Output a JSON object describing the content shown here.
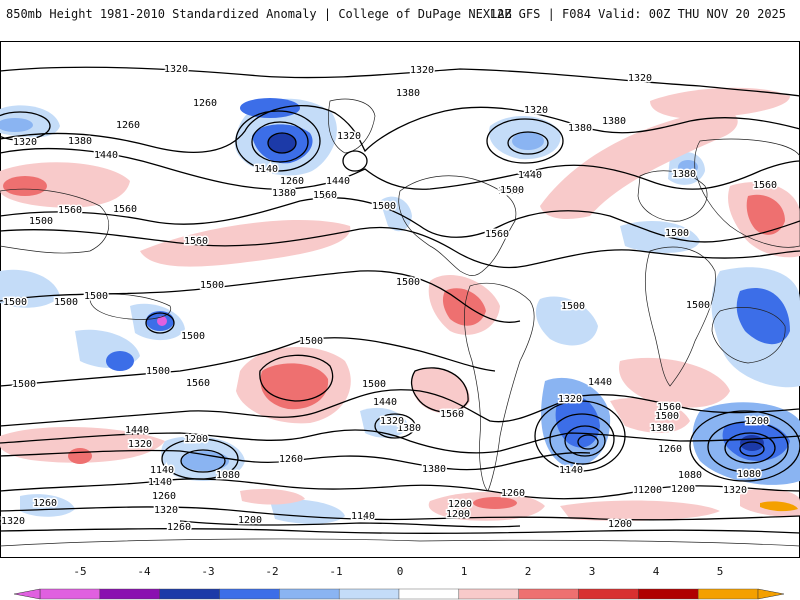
{
  "header": {
    "title": "850mb Height 1981-2010 Standardized Anomaly | College of DuPage NEXLAB",
    "run_info": "12Z GFS | F084 Valid: 00Z THU NOV 20 2025"
  },
  "colorbar": {
    "ticks": [
      "-5",
      "-4",
      "-3",
      "-2",
      "-1",
      "0",
      "1",
      "2",
      "3",
      "4",
      "5"
    ],
    "colors": [
      "#e060e0",
      "#8a10b0",
      "#1c3aa8",
      "#3c6ee8",
      "#8ab4f2",
      "#c4dcf8",
      "#ffffff",
      "#f8caca",
      "#ee7070",
      "#d83030",
      "#b00000",
      "#f4a000"
    ]
  },
  "contour_labels": [
    {
      "text": "1320"
    },
    {
      "text": "1320"
    },
    {
      "text": "1320"
    },
    {
      "text": "1380"
    },
    {
      "text": "1320"
    },
    {
      "text": "1380"
    },
    {
      "text": "1380"
    },
    {
      "text": "1260"
    },
    {
      "text": "1260"
    },
    {
      "text": "1320"
    },
    {
      "text": "1380"
    },
    {
      "text": "1440"
    },
    {
      "text": "1320"
    },
    {
      "text": "1140"
    },
    {
      "text": "1260"
    },
    {
      "text": "1380"
    },
    {
      "text": "1440"
    },
    {
      "text": "1500"
    },
    {
      "text": "1560"
    },
    {
      "text": "1500"
    },
    {
      "text": "1440"
    },
    {
      "text": "1380"
    },
    {
      "text": "1500"
    },
    {
      "text": "1560"
    },
    {
      "text": "1560"
    },
    {
      "text": "1560"
    },
    {
      "text": "1500"
    },
    {
      "text": "1560"
    },
    {
      "text": "1560"
    },
    {
      "text": "1500"
    },
    {
      "text": "1500"
    },
    {
      "text": "1500"
    },
    {
      "text": "1500"
    },
    {
      "text": "1500"
    },
    {
      "text": "1500"
    },
    {
      "text": "1500"
    },
    {
      "text": "1500"
    },
    {
      "text": "1500"
    },
    {
      "text": "1500"
    },
    {
      "text": "1500"
    },
    {
      "text": "1500"
    },
    {
      "text": "1560"
    },
    {
      "text": "1500"
    },
    {
      "text": "1440"
    },
    {
      "text": "1440"
    },
    {
      "text": "1380"
    },
    {
      "text": "1320"
    },
    {
      "text": "1440"
    },
    {
      "text": "1320"
    },
    {
      "text": "1560"
    },
    {
      "text": "1320"
    },
    {
      "text": "1560"
    },
    {
      "text": "1500"
    },
    {
      "text": "1380"
    },
    {
      "text": "1260"
    },
    {
      "text": "1200"
    },
    {
      "text": "1200"
    },
    {
      "text": "1140"
    },
    {
      "text": "1260"
    },
    {
      "text": "1080"
    },
    {
      "text": "1140"
    },
    {
      "text": "1260"
    },
    {
      "text": "1320"
    },
    {
      "text": "1080"
    },
    {
      "text": "1380"
    },
    {
      "text": "1140"
    },
    {
      "text": "1260"
    },
    {
      "text": "1200"
    },
    {
      "text": "1260"
    },
    {
      "text": "1080"
    },
    {
      "text": "1200"
    },
    {
      "text": "1260"
    },
    {
      "text": "1320"
    },
    {
      "text": "1320"
    },
    {
      "text": "1260"
    },
    {
      "text": "1200"
    },
    {
      "text": "1140"
    },
    {
      "text": "1200"
    },
    {
      "text": "1200"
    },
    {
      "text": "1200"
    },
    {
      "text": "1260"
    }
  ]
}
